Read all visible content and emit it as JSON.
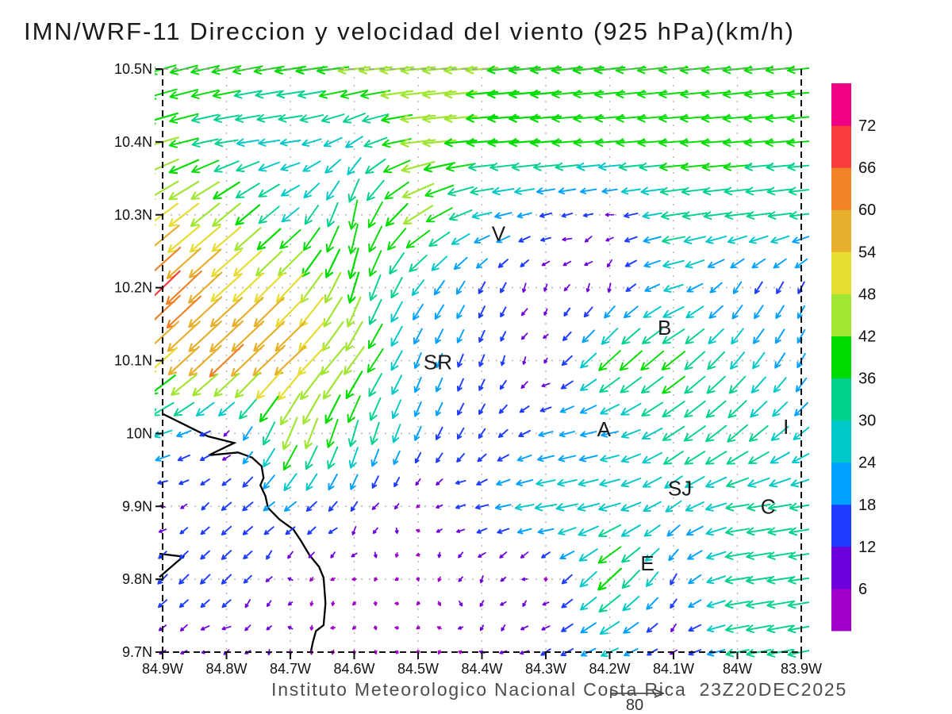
{
  "title": "IMN/WRF-11 Direccion y velocidad del viento (925 hPa)(km/h)",
  "footer": {
    "credit": "Instituto Meteorologico Nacional Costa Rica",
    "datetime": "23Z20DEC2025"
  },
  "reference_vector": {
    "label": "80",
    "units": "km/h"
  },
  "axes": {
    "lat_ticks": [
      {
        "label": "10.5N",
        "value": 10.5
      },
      {
        "label": "10.4N",
        "value": 10.4
      },
      {
        "label": "10.3N",
        "value": 10.3
      },
      {
        "label": "10.2N",
        "value": 10.2
      },
      {
        "label": "10.1N",
        "value": 10.1
      },
      {
        "label": "10N",
        "value": 10.0
      },
      {
        "label": "9.9N",
        "value": 9.9
      },
      {
        "label": "9.8N",
        "value": 9.8
      },
      {
        "label": "9.7N",
        "value": 9.7
      }
    ],
    "lon_ticks": [
      {
        "label": "84.9W",
        "value": -84.9
      },
      {
        "label": "84.8W",
        "value": -84.8
      },
      {
        "label": "84.7W",
        "value": -84.7
      },
      {
        "label": "84.6W",
        "value": -84.6
      },
      {
        "label": "84.5W",
        "value": -84.5
      },
      {
        "label": "84.4W",
        "value": -84.4
      },
      {
        "label": "84.3W",
        "value": -84.3
      },
      {
        "label": "84.2W",
        "value": -84.2
      },
      {
        "label": "84.1W",
        "value": -84.1
      },
      {
        "label": "84W",
        "value": -84.0
      },
      {
        "label": "83.9W",
        "value": -83.9
      }
    ]
  },
  "stations": [
    {
      "label": "V",
      "lon": -84.374,
      "lat": 10.274
    },
    {
      "label": "B",
      "lon": -84.114,
      "lat": 10.145
    },
    {
      "label": "SR",
      "lon": -84.469,
      "lat": 10.098
    },
    {
      "label": "A",
      "lon": -84.209,
      "lat": 10.006
    },
    {
      "label": "I",
      "lon": -83.924,
      "lat": 10.009
    },
    {
      "label": "SJ",
      "lon": -84.09,
      "lat": 9.925
    },
    {
      "label": "C",
      "lon": -83.952,
      "lat": 9.9
    },
    {
      "label": "E",
      "lon": -84.141,
      "lat": 9.822
    }
  ],
  "coastline": [
    [
      [
        -84.9,
        10.027
      ],
      [
        -84.829,
        9.996
      ],
      [
        -84.788,
        9.987
      ],
      [
        -84.828,
        9.97
      ],
      [
        -84.782,
        9.974
      ],
      [
        -84.76,
        9.967
      ],
      [
        -84.745,
        9.955
      ],
      [
        -84.742,
        9.939
      ],
      [
        -84.747,
        9.929
      ],
      [
        -84.739,
        9.914
      ],
      [
        -84.735,
        9.898
      ],
      [
        -84.717,
        9.882
      ],
      [
        -84.695,
        9.868
      ],
      [
        -84.683,
        9.852
      ],
      [
        -84.67,
        9.833
      ],
      [
        -84.655,
        9.817
      ],
      [
        -84.648,
        9.802
      ],
      [
        -84.645,
        9.767
      ],
      [
        -84.648,
        9.737
      ],
      [
        -84.66,
        9.729
      ],
      [
        -84.665,
        9.713
      ],
      [
        -84.668,
        9.7
      ]
    ],
    [
      [
        -84.905,
        9.835
      ],
      [
        -84.868,
        9.831
      ],
      [
        -84.905,
        9.803
      ]
    ]
  ],
  "chart_data": {
    "type": "vector_field",
    "title": "IMN/WRF-11 Direccion y velocidad del viento (925 hPa)(km/h)",
    "variable": "wind direction and speed",
    "level_hPa": 925,
    "units": "km/h",
    "valid_time": "23Z20DEC2025",
    "lon_range": [
      -84.9,
      -83.9
    ],
    "lat_range": [
      9.7,
      10.5
    ],
    "grid_note": "coarse 0.1-deg sampled field (u eastward, v northward, km/h); plot renders bilinear interpolation at 1/30 deg",
    "speed_levels": [
      6,
      12,
      18,
      24,
      30,
      36,
      42,
      48,
      54,
      60,
      66,
      72
    ],
    "speed_colors": [
      "#a000c8",
      "#6e00dc",
      "#1e3cff",
      "#00a0ff",
      "#00c8c8",
      "#00d28c",
      "#00dc00",
      "#a0e632",
      "#e6dc32",
      "#e6af2d",
      "#f08228",
      "#fa3c3c",
      "#f00082"
    ],
    "grid": {
      "lons": [
        -84.9,
        -84.8,
        -84.7,
        -84.6,
        -84.5,
        -84.4,
        -84.3,
        -84.2,
        -84.1,
        -84.0,
        -83.9
      ],
      "lats": [
        10.5,
        10.4,
        10.3,
        10.2,
        10.1,
        10.0,
        9.9,
        9.8,
        9.7
      ],
      "u": [
        [
          -35,
          -38,
          -40,
          -42,
          -45,
          -42,
          -40,
          -40,
          -38,
          -38,
          -36
        ],
        [
          -42,
          -30,
          -26,
          -22,
          -45,
          -40,
          -40,
          -38,
          -38,
          -38,
          -38
        ],
        [
          -40,
          -36,
          -22,
          -8,
          -38,
          -25,
          -15,
          -10,
          -32,
          -32,
          -30
        ],
        [
          -50,
          -40,
          -36,
          -12,
          -15,
          -8,
          -5,
          -6,
          -25,
          -10,
          -8
        ],
        [
          -38,
          -44,
          -40,
          -26,
          -8,
          -6,
          -5,
          -28,
          -30,
          -18,
          -10
        ],
        [
          -24,
          -8,
          -18,
          -10,
          -8,
          -8,
          -18,
          -22,
          -28,
          -26,
          -20
        ],
        [
          -6,
          -12,
          -15,
          -8,
          -4,
          -16,
          -28,
          -28,
          -20,
          -30,
          -30
        ],
        [
          -12,
          -12,
          -5,
          -4,
          -3,
          -5,
          -4,
          -30,
          -8,
          -32,
          -34
        ],
        [
          -8,
          -8,
          -5,
          -4,
          -3,
          -5,
          -12,
          -22,
          -8,
          -30,
          -35
        ]
      ],
      "v": [
        [
          -10,
          -8,
          -6,
          -5,
          -5,
          -4,
          -4,
          -4,
          -4,
          -4,
          -4
        ],
        [
          -12,
          -5,
          -4,
          -14,
          -5,
          -3,
          -3,
          -3,
          -3,
          -3,
          -3
        ],
        [
          -30,
          -30,
          -18,
          -38,
          -24,
          -6,
          -4,
          -3,
          -5,
          -4,
          -4
        ],
        [
          -48,
          -36,
          -38,
          -40,
          -20,
          -15,
          -8,
          -10,
          -8,
          -15,
          -15
        ],
        [
          -34,
          -42,
          -38,
          -36,
          -20,
          -15,
          -5,
          -26,
          -24,
          -22,
          -18
        ],
        [
          -8,
          -5,
          -42,
          -34,
          -18,
          -12,
          -5,
          -5,
          -18,
          -22,
          -16
        ],
        [
          -3,
          -10,
          -12,
          -12,
          -3,
          -4,
          -5,
          -8,
          -14,
          -5,
          -5
        ],
        [
          -12,
          -12,
          -4,
          -3,
          -3,
          -8,
          -3,
          -28,
          -14,
          -5,
          -5
        ],
        [
          -4,
          -4,
          -3,
          -3,
          -3,
          -4,
          -8,
          -10,
          -6,
          -6,
          -7
        ]
      ]
    }
  }
}
